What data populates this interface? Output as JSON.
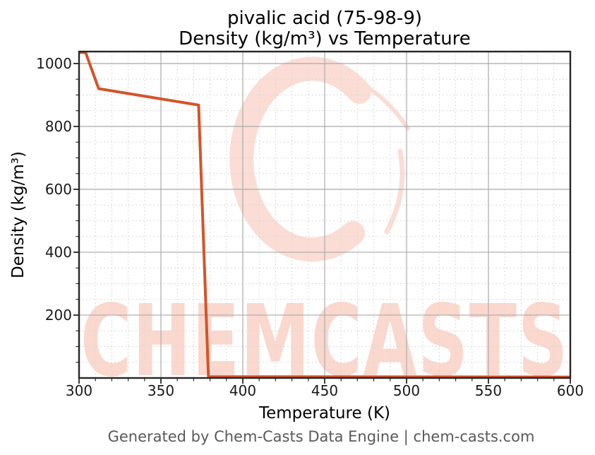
{
  "header": {
    "title_line1": "pivalic acid (75-98-9)",
    "title_line2": "Density (kg/m³) vs Temperature"
  },
  "footer": {
    "text": "Generated by Chem-Casts Data Engine | chem-casts.com"
  },
  "watermark": {
    "text": "CHEMCASTS",
    "text_color": "#fad8cd",
    "logo_color": "#fbddd5",
    "logo_icon": "chemcasts-brush-c-logo"
  },
  "colors": {
    "line": "#d3542a",
    "grid_major": "#b0b0b0",
    "grid_minor": "#d9d9d9",
    "spine": "#262626",
    "tick": "#262626",
    "tick_label": "#1a1a1a",
    "title": "#000000",
    "axis_label": "#000000",
    "footer": "#595959",
    "background": "#ffffff"
  },
  "chart_data": {
    "type": "line",
    "title": "pivalic acid (75-98-9) — Density (kg/m³) vs Temperature",
    "xlabel": "Temperature (K)",
    "ylabel": "Density (kg/m³)",
    "x": [
      300,
      304,
      312,
      373,
      379,
      600
    ],
    "y": [
      1035,
      1035,
      920,
      868,
      4,
      3
    ],
    "xlim": [
      300,
      600
    ],
    "ylim": [
      0,
      1038
    ],
    "x_major_ticks": [
      300,
      350,
      400,
      450,
      500,
      550,
      600
    ],
    "y_major_ticks": [
      200,
      400,
      600,
      800,
      1000
    ],
    "x_minor_step": 10,
    "y_minor_step": 50,
    "grid": true,
    "legend_position": "none",
    "line_width": 4
  }
}
